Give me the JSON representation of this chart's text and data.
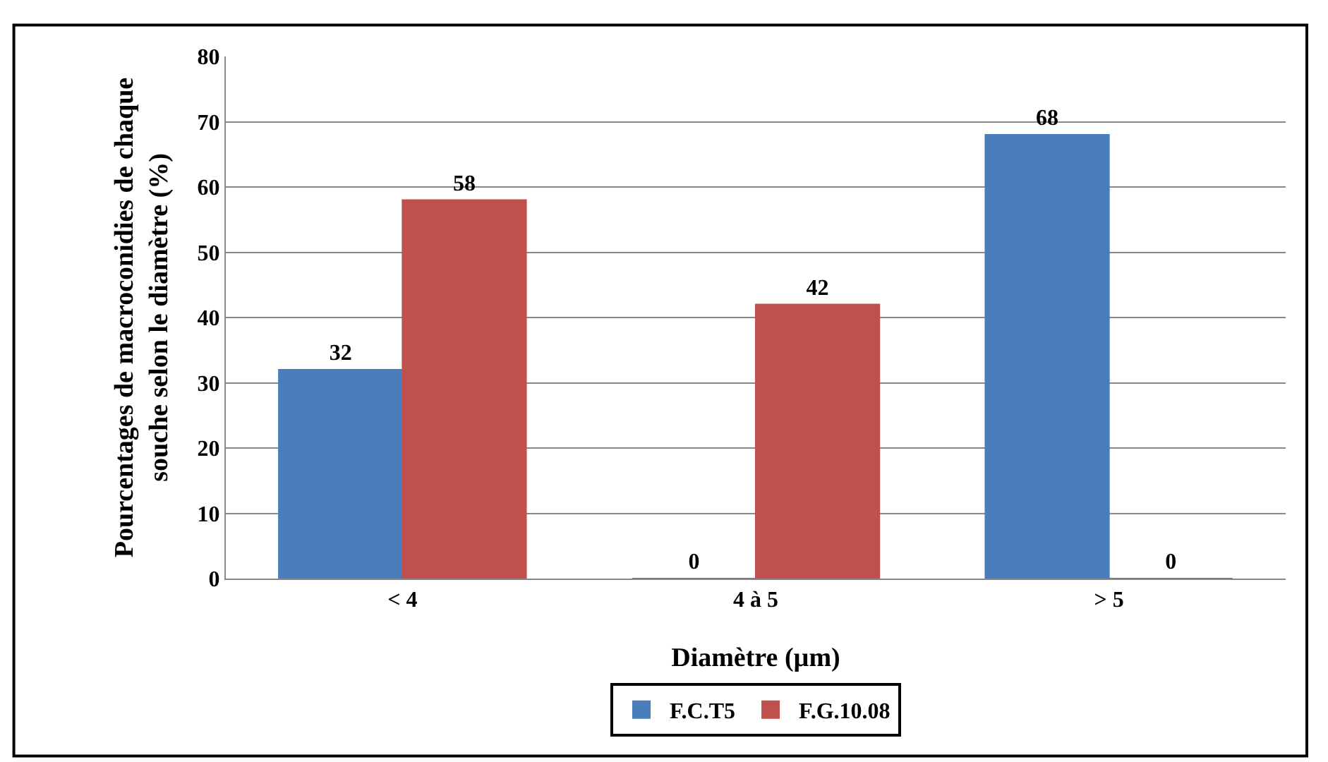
{
  "chart_data": {
    "type": "bar",
    "xlabel": "Diamètre (µm)",
    "ylabel": "Pourcentages de macroconidies de chaque souche selon le diamètre (%)",
    "categories": [
      "< 4",
      "4 à 5",
      "> 5"
    ],
    "series": [
      {
        "name": "F.C.T5",
        "color": "#4a7ebb",
        "values": [
          32,
          0,
          68
        ]
      },
      {
        "name": "F.G.10.08",
        "color": "#c0504d",
        "values": [
          58,
          42,
          0
        ]
      }
    ],
    "ylim": [
      0,
      80
    ],
    "yticks": [
      0,
      10,
      20,
      30,
      40,
      50,
      60,
      70,
      80
    ],
    "grid": "y",
    "legend": "bottom",
    "data_labels": true
  }
}
